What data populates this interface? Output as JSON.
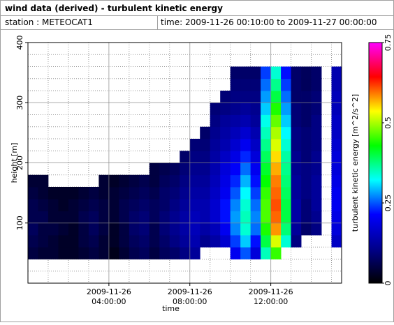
{
  "header": {
    "title": "wind data (derived) - turbulent kinetic energy",
    "station": "station : METEOCAT1",
    "period": "time: 2009-11-26 00:10:00 to 2009-11-27 00:00:00"
  },
  "chart_data": {
    "type": "heatmap",
    "xlabel": "time",
    "ylabel": "height [m]",
    "colorbar_label": "turbulent kinetic energy [m^2/s^2]",
    "xlim": [
      "2009-11-26 00:00:00",
      "2009-11-26 15:30:00"
    ],
    "xticks": [
      {
        "value": "2009-11-26 04:00:00",
        "label": [
          "2009-11-26",
          "04:00:00"
        ]
      },
      {
        "value": "2009-11-26 08:00:00",
        "label": [
          "2009-11-26",
          "08:00:00"
        ]
      },
      {
        "value": "2009-11-26 12:00:00",
        "label": [
          "2009-11-26",
          "12:00:00"
        ]
      }
    ],
    "xminorticks": [
      "2009-11-26 01:00:00",
      "2009-11-26 02:00:00",
      "2009-11-26 03:00:00",
      "2009-11-26 05:00:00",
      "2009-11-26 06:00:00",
      "2009-11-26 07:00:00",
      "2009-11-26 09:00:00",
      "2009-11-26 10:00:00",
      "2009-11-26 11:00:00",
      "2009-11-26 13:00:00",
      "2009-11-26 14:00:00",
      "2009-11-26 15:00:00"
    ],
    "ylim": [
      0,
      400
    ],
    "yticks": [
      100,
      200,
      300,
      400
    ],
    "yminorticks": [
      20,
      40,
      60,
      80,
      120,
      140,
      160,
      180,
      220,
      240,
      260,
      280,
      320,
      340,
      360,
      380
    ],
    "zlim": [
      0,
      0.75
    ],
    "zticks": [
      0,
      0.25,
      0.5,
      0.75
    ],
    "colormap": [
      "#000000",
      "#00008b",
      "#0000ff",
      "#00ffff",
      "#00ff00",
      "#ffff00",
      "#ff0000",
      "#ff00ff"
    ],
    "grid": true,
    "x": [
      "2009-11-26 00:00:00",
      "2009-11-26 00:30:00",
      "2009-11-26 01:00:00",
      "2009-11-26 01:30:00",
      "2009-11-26 02:00:00",
      "2009-11-26 02:30:00",
      "2009-11-26 03:00:00",
      "2009-11-26 03:30:00",
      "2009-11-26 04:00:00",
      "2009-11-26 04:30:00",
      "2009-11-26 05:00:00",
      "2009-11-26 05:30:00",
      "2009-11-26 06:00:00",
      "2009-11-26 06:30:00",
      "2009-11-26 07:00:00",
      "2009-11-26 07:30:00",
      "2009-11-26 08:00:00",
      "2009-11-26 08:30:00",
      "2009-11-26 09:00:00",
      "2009-11-26 09:30:00",
      "2009-11-26 10:00:00",
      "2009-11-26 10:30:00",
      "2009-11-26 11:00:00",
      "2009-11-26 11:30:00",
      "2009-11-26 12:00:00",
      "2009-11-26 12:30:00",
      "2009-11-26 13:00:00",
      "2009-11-26 13:30:00",
      "2009-11-26 14:00:00",
      "2009-11-26 14:30:00",
      "2009-11-26 15:00:00"
    ],
    "y": [
      40,
      60,
      80,
      100,
      120,
      140,
      160,
      180,
      200,
      220,
      240,
      260,
      280,
      300,
      320,
      340
    ],
    "values": [
      [
        0.05,
        0.06,
        0.07,
        0.06,
        0.06,
        0.05,
        0.04,
        null,
        null,
        null,
        null,
        null,
        null,
        null,
        null,
        null
      ],
      [
        0.04,
        0.05,
        0.05,
        0.06,
        0.05,
        0.04,
        0.04,
        null,
        null,
        null,
        null,
        null,
        null,
        null,
        null,
        null
      ],
      [
        0.04,
        0.04,
        0.05,
        0.04,
        0.04,
        0.03,
        null,
        null,
        null,
        null,
        null,
        null,
        null,
        null,
        null,
        null
      ],
      [
        0.03,
        0.03,
        0.04,
        0.04,
        0.03,
        0.03,
        null,
        null,
        null,
        null,
        null,
        null,
        null,
        null,
        null,
        null
      ],
      [
        0.03,
        0.03,
        0.03,
        0.04,
        0.04,
        0.03,
        null,
        null,
        null,
        null,
        null,
        null,
        null,
        null,
        null,
        null
      ],
      [
        0.04,
        0.05,
        0.05,
        0.06,
        0.05,
        0.04,
        null,
        null,
        null,
        null,
        null,
        null,
        null,
        null,
        null,
        null
      ],
      [
        0.05,
        0.06,
        0.07,
        0.07,
        0.06,
        0.05,
        null,
        null,
        null,
        null,
        null,
        null,
        null,
        null,
        null,
        null
      ],
      [
        0.04,
        0.04,
        0.05,
        0.05,
        0.05,
        0.04,
        0.04,
        null,
        null,
        null,
        null,
        null,
        null,
        null,
        null,
        null
      ],
      [
        0.02,
        0.03,
        0.03,
        0.04,
        0.04,
        0.04,
        0.03,
        null,
        null,
        null,
        null,
        null,
        null,
        null,
        null,
        null
      ],
      [
        0.04,
        0.05,
        0.05,
        0.06,
        0.06,
        0.05,
        0.04,
        null,
        null,
        null,
        null,
        null,
        null,
        null,
        null,
        null
      ],
      [
        0.06,
        0.07,
        0.08,
        0.08,
        0.07,
        0.06,
        0.05,
        null,
        null,
        null,
        null,
        null,
        null,
        null,
        null,
        null
      ],
      [
        0.07,
        0.08,
        0.09,
        0.09,
        0.08,
        0.07,
        0.06,
        null,
        null,
        null,
        null,
        null,
        null,
        null,
        null,
        null
      ],
      [
        0.05,
        0.06,
        0.06,
        0.07,
        0.07,
        0.06,
        0.05,
        0.05,
        null,
        null,
        null,
        null,
        null,
        null,
        null,
        null
      ],
      [
        0.07,
        0.08,
        0.09,
        0.09,
        0.08,
        0.08,
        0.07,
        0.06,
        null,
        null,
        null,
        null,
        null,
        null,
        null,
        null
      ],
      [
        0.08,
        0.1,
        0.11,
        0.11,
        0.1,
        0.09,
        0.08,
        0.07,
        null,
        null,
        null,
        null,
        null,
        null,
        null,
        null
      ],
      [
        0.1,
        0.12,
        0.13,
        0.13,
        0.12,
        0.11,
        0.1,
        0.09,
        0.08,
        null,
        null,
        null,
        null,
        null,
        null,
        null
      ],
      [
        0.12,
        0.14,
        0.15,
        0.15,
        0.14,
        0.13,
        0.12,
        0.11,
        0.1,
        0.09,
        null,
        null,
        null,
        null,
        null,
        null
      ],
      [
        null,
        0.11,
        0.13,
        0.14,
        0.14,
        0.13,
        0.12,
        0.11,
        0.1,
        0.09,
        0.08,
        null,
        null,
        null,
        null,
        null
      ],
      [
        null,
        0.13,
        0.15,
        0.17,
        0.17,
        0.16,
        0.15,
        0.14,
        0.13,
        0.12,
        0.11,
        0.1,
        0.09,
        null,
        null,
        null
      ],
      [
        null,
        0.17,
        0.2,
        0.22,
        0.22,
        0.2,
        0.19,
        0.18,
        0.16,
        0.14,
        0.13,
        0.12,
        0.1,
        0.09,
        null,
        null
      ],
      [
        0.2,
        0.24,
        0.27,
        0.28,
        0.27,
        0.25,
        0.23,
        0.21,
        0.19,
        0.17,
        0.15,
        0.13,
        0.11,
        0.1,
        0.09,
        0.08
      ],
      [
        0.25,
        0.3,
        0.34,
        0.35,
        0.34,
        0.32,
        0.29,
        0.26,
        0.23,
        0.2,
        0.17,
        0.14,
        0.12,
        0.1,
        0.09,
        0.08
      ],
      [
        0.18,
        0.22,
        0.26,
        0.27,
        0.26,
        0.24,
        0.22,
        0.2,
        0.18,
        0.16,
        0.14,
        0.12,
        0.11,
        0.1,
        0.09,
        0.08
      ],
      [
        0.35,
        0.4,
        0.44,
        0.46,
        0.46,
        0.45,
        0.43,
        0.41,
        0.39,
        0.37,
        0.35,
        0.33,
        0.3,
        0.28,
        0.26,
        0.24
      ],
      [
        0.45,
        0.52,
        0.58,
        0.6,
        0.61,
        0.6,
        0.59,
        0.57,
        0.55,
        0.52,
        0.5,
        0.47,
        0.44,
        0.4,
        0.37,
        0.34
      ],
      [
        null,
        0.34,
        0.38,
        0.4,
        0.4,
        0.39,
        0.38,
        0.37,
        0.36,
        0.34,
        0.32,
        0.3,
        0.28,
        0.26,
        0.24,
        0.22
      ],
      [
        null,
        0.1,
        0.12,
        0.13,
        0.13,
        0.12,
        0.12,
        0.11,
        0.11,
        0.1,
        0.1,
        0.09,
        0.09,
        0.08,
        0.08,
        0.08
      ],
      [
        null,
        null,
        0.08,
        0.09,
        0.09,
        0.1,
        0.1,
        0.1,
        0.09,
        0.09,
        0.09,
        0.08,
        0.08,
        0.08,
        0.07,
        0.07
      ],
      [
        null,
        null,
        0.1,
        0.11,
        0.12,
        0.12,
        0.12,
        0.11,
        0.11,
        0.1,
        0.1,
        0.1,
        0.09,
        0.09,
        0.08,
        0.08
      ],
      [
        null,
        null,
        null,
        null,
        null,
        null,
        null,
        null,
        null,
        null,
        null,
        null,
        null,
        null,
        null,
        null
      ],
      [
        null,
        0.16,
        0.18,
        0.19,
        0.2,
        0.2,
        0.19,
        0.18,
        0.18,
        0.17,
        0.16,
        0.16,
        0.15,
        0.15,
        0.14,
        0.14
      ]
    ]
  }
}
